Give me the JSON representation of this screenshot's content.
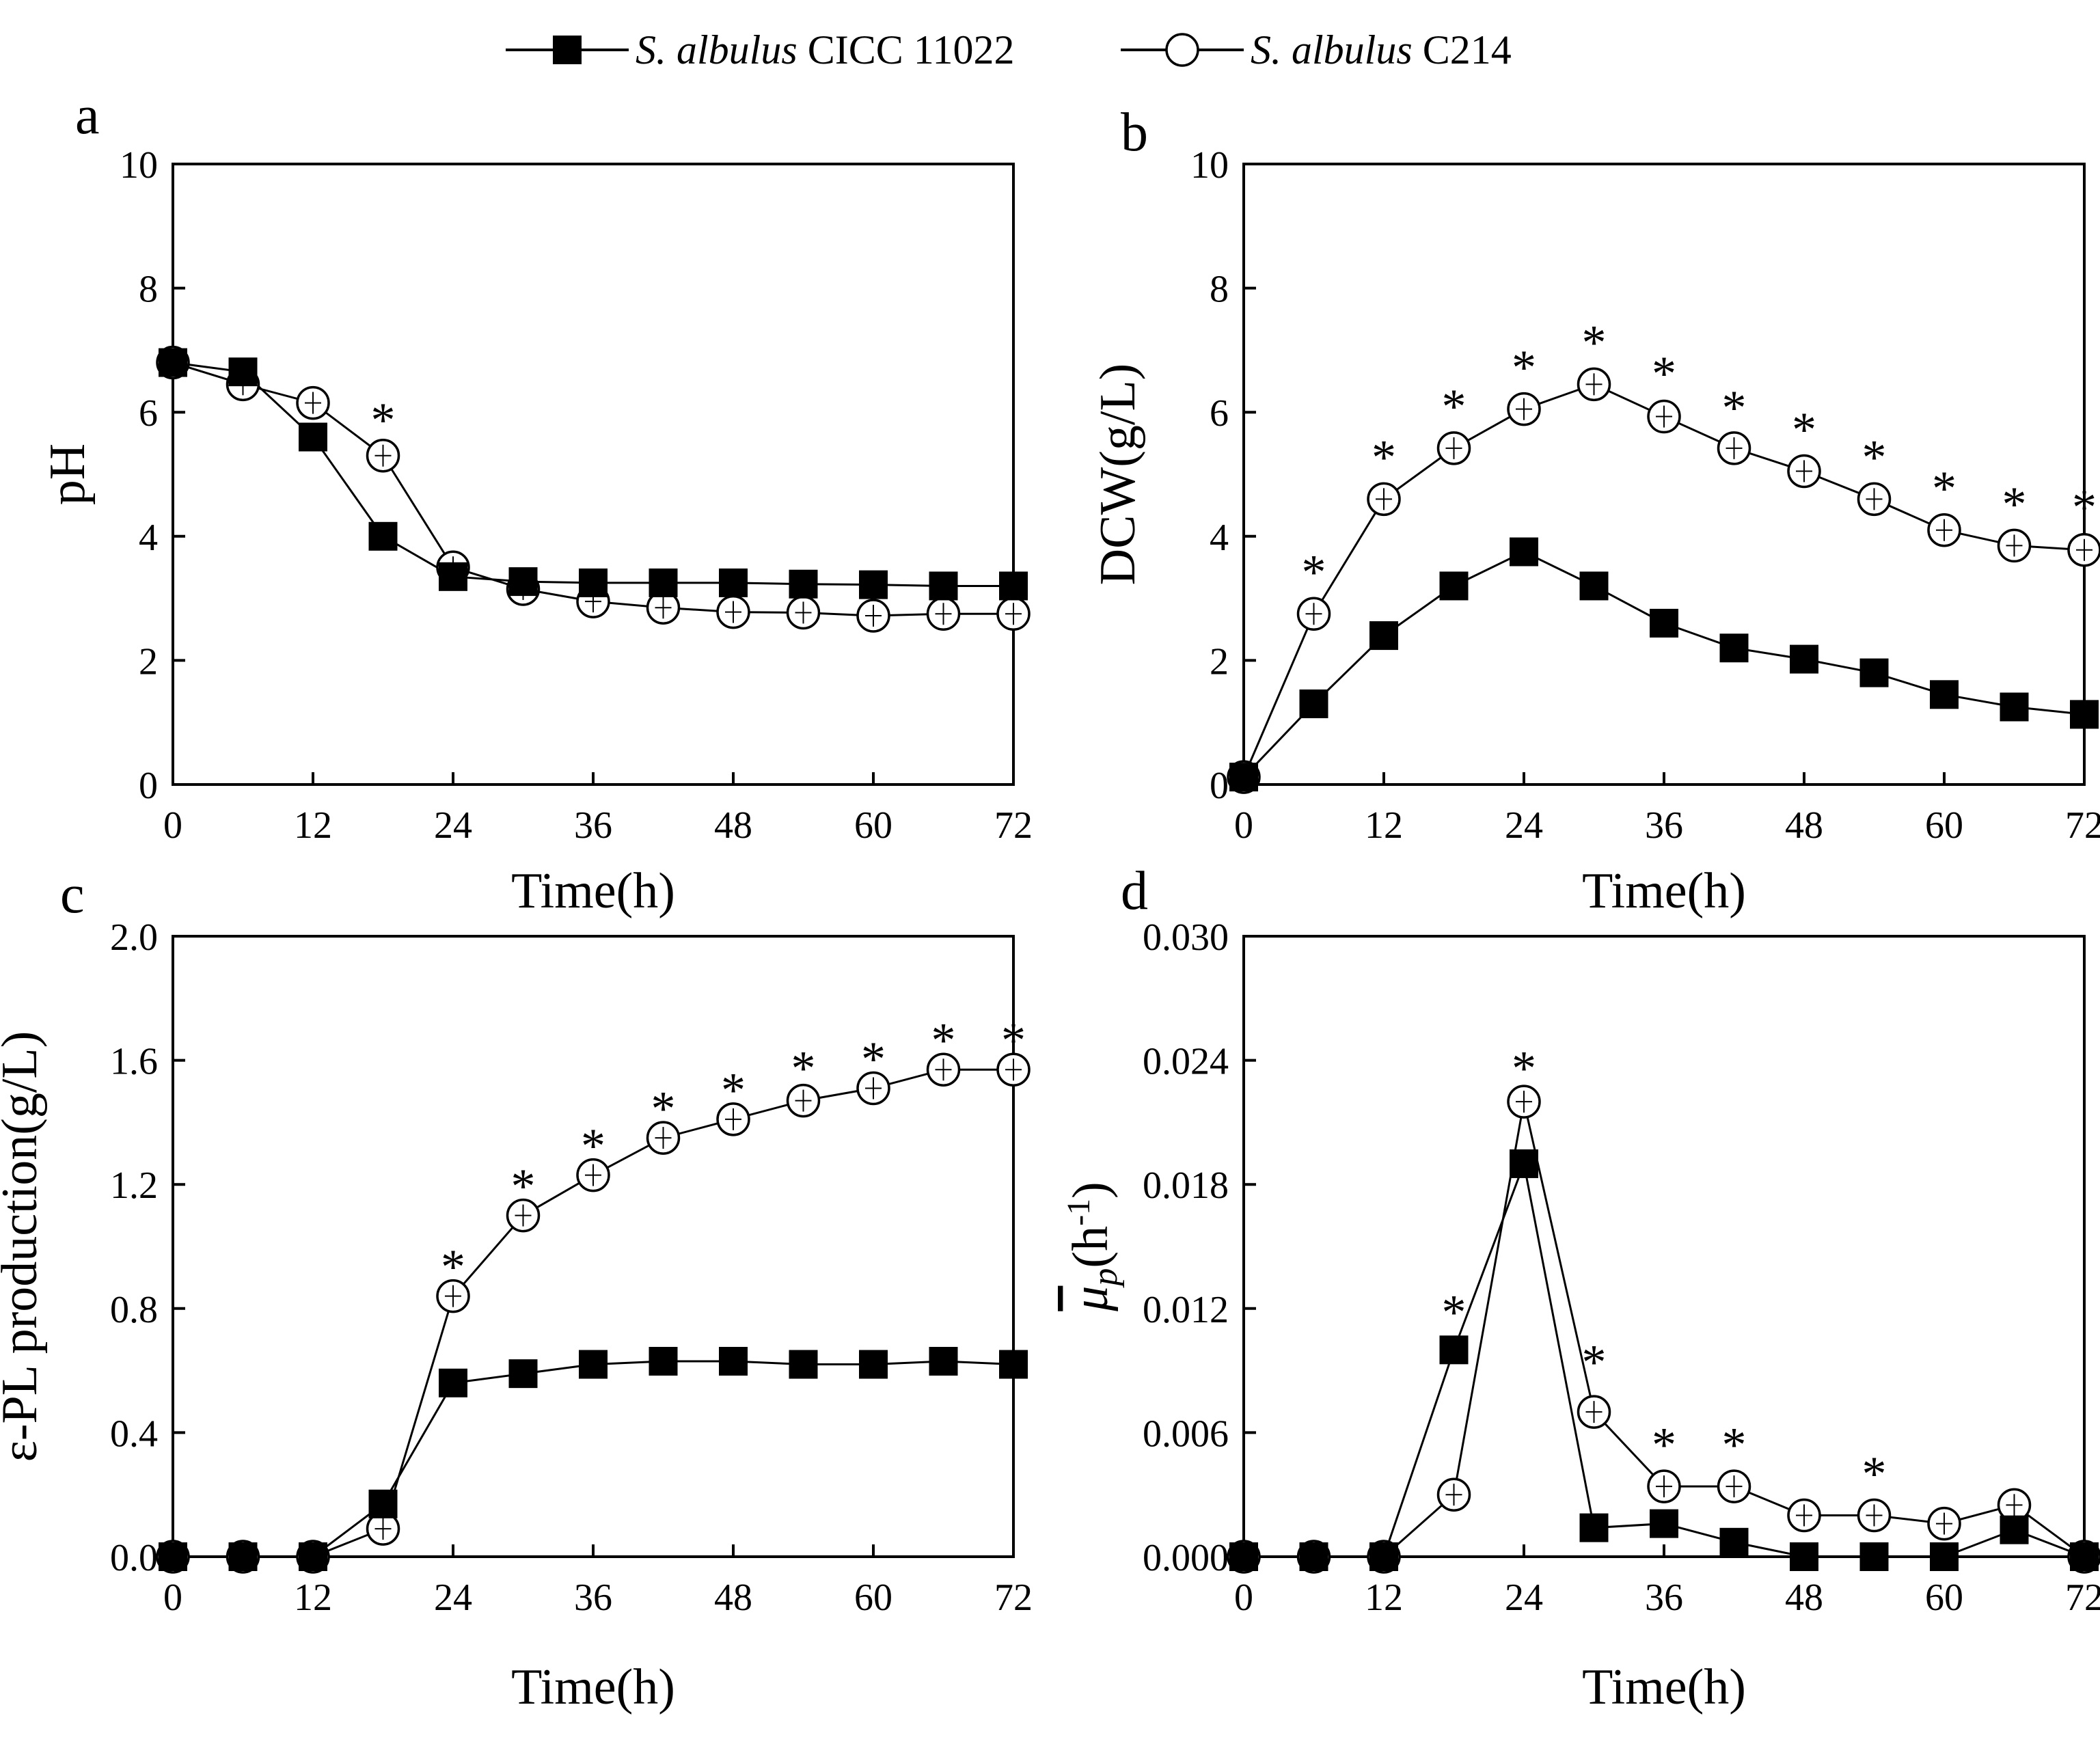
{
  "legend": {
    "entries": [
      {
        "prefix": "S. albulus",
        "suffix": "CICC 11022",
        "marker": "filled-square",
        "color": "#000000"
      },
      {
        "prefix": "S. albulus",
        "suffix": "C214",
        "marker": "open-circle-with-errorbar",
        "color": "#000000"
      }
    ],
    "placement": "top-center"
  },
  "chart_data": [
    {
      "panel": "a",
      "type": "line",
      "xlabel": "Time(h)",
      "ylabel": "pH",
      "xlim": [
        0,
        72
      ],
      "ylim": [
        0,
        10
      ],
      "xticks": [
        0,
        12,
        24,
        36,
        48,
        60,
        72
      ],
      "yticks": [
        0,
        2,
        4,
        6,
        8,
        10
      ],
      "ytick_labels": [
        "0",
        "2",
        "4",
        "6",
        "8",
        "10"
      ],
      "x": [
        0,
        6,
        12,
        18,
        24,
        30,
        36,
        42,
        48,
        54,
        60,
        66,
        72
      ],
      "series": [
        {
          "name": "S. albulus CICC 11022",
          "marker": "square",
          "values": [
            6.8,
            6.65,
            5.6,
            4.0,
            3.35,
            3.27,
            3.25,
            3.25,
            3.25,
            3.23,
            3.22,
            3.2,
            3.2
          ]
        },
        {
          "name": "S. albulus C214",
          "marker": "circle",
          "values": [
            6.8,
            6.45,
            6.15,
            5.3,
            3.5,
            3.15,
            2.95,
            2.85,
            2.78,
            2.77,
            2.72,
            2.75,
            2.75
          ]
        }
      ],
      "significance": {
        "symbol": "*",
        "x": [
          18
        ],
        "y": [
          6.0
        ]
      }
    },
    {
      "panel": "b",
      "type": "line",
      "xlabel": "Time(h)",
      "ylabel": "DCW(g/L)",
      "xlim": [
        0,
        72
      ],
      "ylim": [
        0,
        10
      ],
      "xticks": [
        0,
        12,
        24,
        36,
        48,
        60,
        72
      ],
      "yticks": [
        0,
        2,
        4,
        6,
        8,
        10
      ],
      "ytick_labels": [
        "0",
        "2",
        "4",
        "6",
        "8",
        "10"
      ],
      "x": [
        0,
        6,
        12,
        18,
        24,
        30,
        36,
        42,
        48,
        54,
        60,
        66,
        72
      ],
      "series": [
        {
          "name": "S. albulus CICC 11022",
          "marker": "square",
          "values": [
            0.12,
            1.3,
            2.4,
            3.2,
            3.75,
            3.2,
            2.6,
            2.2,
            2.02,
            1.8,
            1.45,
            1.25,
            1.13
          ]
        },
        {
          "name": "S. albulus C214",
          "marker": "circle",
          "values": [
            0.12,
            2.75,
            4.6,
            5.42,
            6.05,
            6.45,
            5.93,
            5.42,
            5.05,
            4.6,
            4.1,
            3.85,
            3.78
          ]
        }
      ],
      "significance": {
        "symbol": "*",
        "x": [
          6,
          12,
          18,
          24,
          30,
          36,
          42,
          48,
          54,
          60,
          66,
          72
        ],
        "y": [
          3.55,
          5.4,
          6.22,
          6.85,
          7.25,
          6.75,
          6.2,
          5.85,
          5.4,
          4.9,
          4.65,
          4.6
        ]
      }
    },
    {
      "panel": "c",
      "type": "line",
      "xlabel": "Time(h)",
      "ylabel": "ε-PL production(g/L)",
      "xlim": [
        0,
        72
      ],
      "ylim": [
        0,
        2.0
      ],
      "xticks": [
        0,
        12,
        24,
        36,
        48,
        60,
        72
      ],
      "yticks": [
        0,
        0.4,
        0.8,
        1.2,
        1.6,
        2.0
      ],
      "ytick_labels": [
        "0.0",
        "0.4",
        "0.8",
        "1.2",
        "1.6",
        "2.0"
      ],
      "x": [
        0,
        6,
        12,
        18,
        24,
        30,
        36,
        42,
        48,
        54,
        60,
        66,
        72
      ],
      "series": [
        {
          "name": "S. albulus CICC 11022",
          "marker": "square",
          "values": [
            0,
            0,
            0,
            0.17,
            0.56,
            0.59,
            0.62,
            0.63,
            0.63,
            0.62,
            0.62,
            0.63,
            0.62
          ]
        },
        {
          "name": "S. albulus C214",
          "marker": "circle",
          "values": [
            0,
            0,
            0,
            0.09,
            0.84,
            1.1,
            1.23,
            1.35,
            1.41,
            1.47,
            1.51,
            1.57,
            1.57
          ]
        }
      ],
      "significance": {
        "symbol": "*",
        "x": [
          24,
          30,
          36,
          42,
          48,
          54,
          60,
          66,
          72
        ],
        "y": [
          0.96,
          1.22,
          1.35,
          1.47,
          1.53,
          1.6,
          1.63,
          1.69,
          1.69
        ]
      }
    },
    {
      "panel": "d",
      "type": "line",
      "xlabel": "Time(h)",
      "ylabel": "μp(h-1)",
      "xlim": [
        0,
        72
      ],
      "ylim": [
        0,
        0.03
      ],
      "xticks": [
        0,
        12,
        24,
        36,
        48,
        60,
        72
      ],
      "yticks": [
        0,
        0.006,
        0.012,
        0.018,
        0.024,
        0.03
      ],
      "ytick_labels": [
        "0.000",
        "0.006",
        "0.012",
        "0.018",
        "0.024",
        "0.030"
      ],
      "x": [
        0,
        6,
        12,
        18,
        24,
        30,
        36,
        42,
        48,
        54,
        60,
        66,
        72
      ],
      "series": [
        {
          "name": "S. albulus CICC 11022",
          "marker": "square",
          "values": [
            0,
            0,
            0,
            0.01,
            0.019,
            0.0014,
            0.0016,
            0.0007,
            0,
            0,
            0,
            0.0013,
            0
          ]
        },
        {
          "name": "S. albulus C214",
          "marker": "circle",
          "values": [
            0,
            0,
            0,
            0.003,
            0.022,
            0.007,
            0.0034,
            0.0034,
            0.002,
            0.002,
            0.0016,
            0.0025,
            0
          ]
        }
      ],
      "significance": {
        "symbol": "*",
        "x": [
          18,
          24,
          30,
          36,
          42,
          54
        ],
        "y": [
          0.0122,
          0.024,
          0.0098,
          0.0058,
          0.0058,
          0.0044
        ]
      }
    }
  ]
}
